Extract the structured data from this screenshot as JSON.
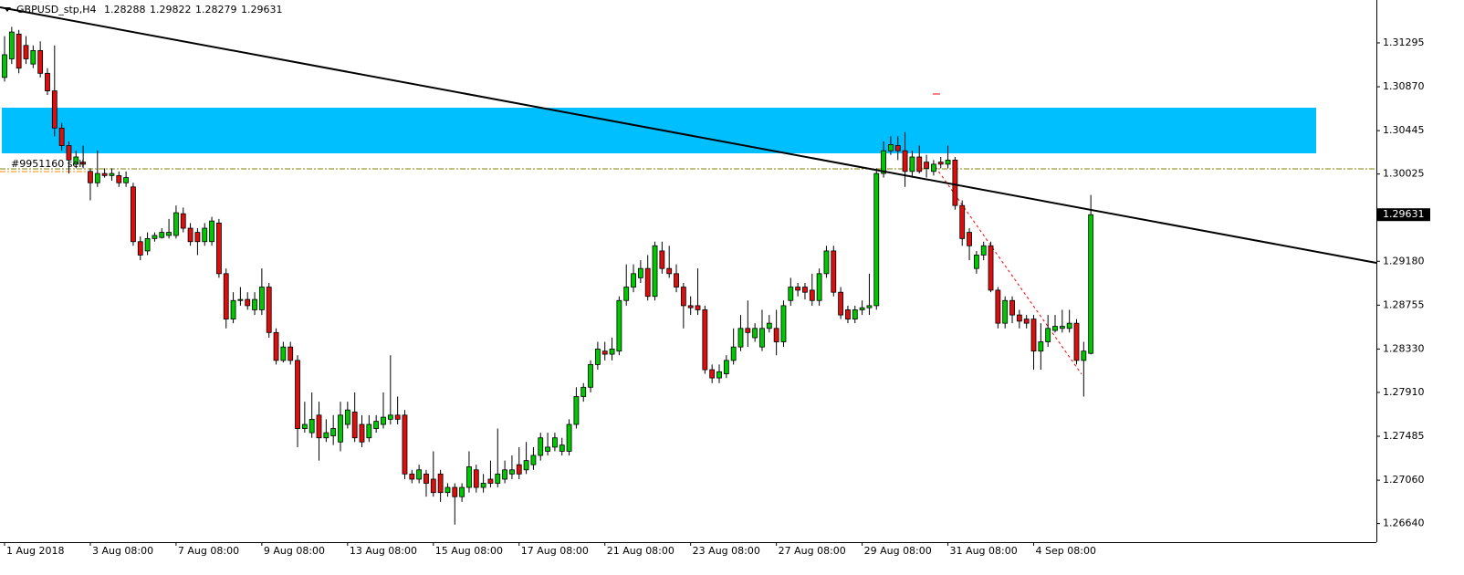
{
  "chart_data": {
    "type": "candlestick",
    "symbol": "GBPUSD_stp,H4",
    "order_label": "#9951160 sell",
    "up_color": "#00c800",
    "down_color": "#dc0f0f",
    "grid": false,
    "ylim": [
      1.2646,
      1.3171
    ],
    "yticks": [
      1.31295,
      {
        "value": 1.3087,
        "label": "1.30870"
      },
      1.30445,
      1.30025,
      {
        "value": 1.2918,
        "label": "1.29180"
      },
      1.28755,
      {
        "value": 1.2833,
        "label": "1.28330"
      },
      {
        "value": 1.2791,
        "label": "1.27910"
      },
      1.27485,
      {
        "value": 1.2706,
        "label": "1.27060"
      },
      {
        "value": 1.2664,
        "label": "1.26640"
      }
    ],
    "categories": [
      "1 Aug 2018",
      null,
      null,
      null,
      null,
      null,
      null,
      null,
      null,
      null,
      null,
      null,
      "3 Aug 08:00",
      null,
      null,
      null,
      null,
      null,
      null,
      null,
      null,
      null,
      null,
      null,
      "7 Aug 08:00",
      null,
      null,
      null,
      null,
      null,
      null,
      null,
      null,
      null,
      null,
      null,
      "9 Aug 08:00",
      null,
      null,
      null,
      null,
      null,
      null,
      null,
      null,
      null,
      null,
      null,
      "13 Aug 08:00",
      null,
      null,
      null,
      null,
      null,
      null,
      null,
      null,
      null,
      null,
      null,
      "15 Aug 08:00",
      null,
      null,
      null,
      null,
      null,
      null,
      null,
      null,
      null,
      null,
      null,
      "17 Aug 08:00",
      null,
      null,
      null,
      null,
      null,
      null,
      null,
      null,
      null,
      null,
      null,
      "21 Aug 08:00",
      null,
      null,
      null,
      null,
      null,
      null,
      null,
      null,
      null,
      null,
      null,
      "23 Aug 08:00",
      null,
      null,
      null,
      null,
      null,
      null,
      null,
      null,
      null,
      null,
      null,
      "27 Aug 08:00",
      null,
      null,
      null,
      null,
      null,
      null,
      null,
      null,
      null,
      null,
      null,
      "29 Aug 08:00",
      null,
      null,
      null,
      null,
      null,
      null,
      null,
      null,
      null,
      null,
      null,
      "31 Aug 08:00",
      null,
      null,
      null,
      null,
      null,
      null,
      null,
      null,
      null,
      null,
      null,
      "4 Sep 08:00",
      null,
      null,
      null,
      null,
      null,
      null,
      null,
      null
    ],
    "open": [
      1.3096,
      1.3114,
      1.3138,
      1.3127,
      1.3109,
      1.3122,
      1.31,
      1.3083,
      1.3047,
      1.303,
      1.3012,
      1.3014,
      1.3005,
      1.2994,
      1.3003,
      1.3001,
      1.3001,
      1.2994,
      1.299,
      1.2937,
      1.2928,
      1.294,
      1.2941,
      1.2943,
      1.2943,
      1.2964,
      1.295,
      1.2946,
      1.2937,
      1.2937,
      1.2955,
      1.2906,
      1.2862,
      1.288,
      1.2881,
      1.2871,
      1.2871,
      1.2893,
      1.2849,
      1.2822,
      1.2835,
      1.2822,
      1.2756,
      1.2752,
      1.2769,
      1.2747,
      1.2749,
      1.2743,
      1.276,
      1.2772,
      1.276,
      1.2747,
      1.2756,
      1.276,
      1.2765,
      1.2769,
      1.2769,
      1.2712,
      1.2707,
      1.2712,
      1.2707,
      1.2712,
      1.2694,
      1.2699,
      1.269,
      1.2699,
      1.2716,
      1.2699,
      1.2707,
      1.2703,
      1.2707,
      1.2712,
      1.2721,
      1.2716,
      1.2721,
      1.273,
      1.2734,
      1.2738,
      1.2734,
      1.2734,
      1.276,
      1.2787,
      1.2796,
      1.2818,
      1.2831,
      1.2828,
      1.2831,
      1.288,
      1.2893,
      1.2902,
      1.2911,
      1.2884,
      1.2928,
      1.2911,
      1.2906,
      1.2893,
      1.2875,
      1.2875,
      1.2871,
      1.2813,
      1.2805,
      1.2809,
      1.2822,
      1.2835,
      1.2853,
      1.2844,
      1.2835,
      1.2853,
      1.2853,
      1.284,
      1.288,
      1.2893,
      1.2893,
      1.289,
      1.288,
      1.2906,
      1.2928,
      1.2888,
      1.2871,
      1.2862,
      1.2871,
      1.2873,
      1.2875,
      1.3003,
      1.3025,
      1.303,
      1.3025,
      1.3005,
      1.3019,
      1.3014,
      1.3005,
      1.3014,
      1.3012,
      1.3016,
      1.2972,
      1.2946,
      1.2911,
      1.2924,
      1.2933,
      1.289,
      1.2858,
      1.288,
      1.2866,
      1.2862,
      1.2862,
      1.2831,
      1.284,
      1.2851,
      1.2853,
      1.2853,
      1.2858,
      1.2822,
      1.28288
    ],
    "high": [
      1.3136,
      1.3145,
      1.3142,
      1.3136,
      1.3127,
      1.3131,
      1.3105,
      1.3127,
      1.3052,
      1.3034,
      1.3025,
      1.303,
      1.3008,
      1.3025,
      1.3008,
      1.3008,
      1.3005,
      1.3005,
      1.2994,
      1.2942,
      1.2946,
      1.2946,
      1.295,
      1.2959,
      1.2972,
      1.297,
      1.2955,
      1.295,
      1.2955,
      1.2961,
      1.2959,
      1.2911,
      1.2888,
      1.2893,
      1.2888,
      1.2888,
      1.2911,
      1.2897,
      1.2853,
      1.284,
      1.284,
      1.2827,
      1.2782,
      1.2791,
      1.2782,
      1.2765,
      1.2769,
      1.2782,
      1.2782,
      1.2791,
      1.2769,
      1.2769,
      1.2769,
      1.2791,
      1.2827,
      1.2787,
      1.2774,
      1.2716,
      1.2721,
      1.2716,
      1.2734,
      1.2716,
      1.2703,
      1.2703,
      1.2703,
      1.2734,
      1.2721,
      1.2712,
      1.2725,
      1.2756,
      1.2725,
      1.273,
      1.2738,
      1.2743,
      1.2738,
      1.2752,
      1.2752,
      1.2752,
      1.2747,
      1.2765,
      1.2796,
      1.28,
      1.2822,
      1.284,
      1.284,
      1.2844,
      1.2884,
      1.2915,
      1.2915,
      1.2919,
      1.2924,
      1.2937,
      1.2937,
      1.2933,
      1.2915,
      1.2897,
      1.2884,
      1.2911,
      1.2875,
      1.2818,
      1.2818,
      1.2827,
      1.2853,
      1.2866,
      1.288,
      1.2858,
      1.2871,
      1.2866,
      1.2871,
      1.288,
      1.2902,
      1.2897,
      1.2897,
      1.2906,
      1.2911,
      1.2933,
      1.2933,
      1.2893,
      1.2875,
      1.2875,
      1.288,
      1.2906,
      1.3008,
      1.3034,
      1.3039,
      1.3039,
      1.3043,
      1.3025,
      1.303,
      1.3021,
      1.3016,
      1.3019,
      1.303,
      1.3019,
      1.2977,
      1.295,
      1.2928,
      1.2937,
      1.2937,
      1.2893,
      1.2884,
      1.2884,
      1.2871,
      1.2866,
      1.2866,
      1.2858,
      1.2866,
      1.2866,
      1.2871,
      1.2871,
      1.2862,
      1.284,
      1.29822
    ],
    "low": [
      1.3092,
      1.3109,
      1.31,
      1.3109,
      1.3105,
      1.3096,
      1.3079,
      1.3039,
      1.3025,
      1.3003,
      1.3008,
      1.3008,
      1.2977,
      1.299,
      1.2999,
      1.2996,
      1.299,
      1.299,
      1.2933,
      1.2919,
      1.2924,
      1.2937,
      1.294,
      1.294,
      1.294,
      1.2946,
      1.2933,
      1.2924,
      1.2933,
      1.2933,
      1.2902,
      1.2853,
      1.2858,
      1.2875,
      1.2871,
      1.2866,
      1.2866,
      1.2844,
      1.2818,
      1.282,
      1.2818,
      1.2738,
      1.2752,
      1.2747,
      1.2725,
      1.2743,
      1.274,
      1.2734,
      1.2756,
      1.2743,
      1.2738,
      1.2743,
      1.2752,
      1.2756,
      1.276,
      1.276,
      1.2707,
      1.2703,
      1.2703,
      1.269,
      1.269,
      1.2685,
      1.269,
      1.2663,
      1.2685,
      1.2694,
      1.2694,
      1.2694,
      1.2699,
      1.2699,
      1.2703,
      1.2707,
      1.2707,
      1.2712,
      1.2716,
      1.2725,
      1.273,
      1.2734,
      1.273,
      1.273,
      1.2756,
      1.2782,
      1.2791,
      1.2813,
      1.2822,
      1.2822,
      1.2827,
      1.2875,
      1.2888,
      1.2897,
      1.288,
      1.288,
      1.2906,
      1.2902,
      1.2888,
      1.2853,
      1.2866,
      1.2866,
      1.2809,
      1.28,
      1.28,
      1.2805,
      1.2818,
      1.2831,
      1.2835,
      1.284,
      1.2831,
      1.2849,
      1.2827,
      1.2835,
      1.2875,
      1.2884,
      1.2881,
      1.2875,
      1.2875,
      1.2902,
      1.2884,
      1.2862,
      1.2858,
      1.2858,
      1.2866,
      1.2866,
      1.2871,
      1.2999,
      1.3021,
      1.3016,
      1.299,
      1.2999,
      1.3003,
      1.2999,
      1.3001,
      1.3008,
      1.3008,
      1.2968,
      1.2933,
      1.2919,
      1.2906,
      1.2919,
      1.2888,
      1.2853,
      1.2853,
      1.2858,
      1.2853,
      1.2853,
      1.2813,
      1.2813,
      1.2835,
      1.2849,
      1.2849,
      1.2849,
      1.2818,
      1.2787,
      1.28279
    ],
    "close": [
      1.3118,
      1.314,
      1.3105,
      1.3114,
      1.3122,
      1.31,
      1.3083,
      1.3047,
      1.303,
      1.3016,
      1.3019,
      1.3012,
      1.2994,
      1.3003,
      1.3001,
      1.3003,
      1.2994,
      1.2999,
      1.2937,
      1.2924,
      1.294,
      1.2943,
      1.2946,
      1.2946,
      1.2965,
      1.295,
      1.2937,
      1.2937,
      1.295,
      1.2957,
      1.2906,
      1.2862,
      1.288,
      1.2881,
      1.2875,
      1.2881,
      1.2893,
      1.2849,
      1.2822,
      1.2835,
      1.2822,
      1.2756,
      1.276,
      1.2765,
      1.2747,
      1.2752,
      1.2756,
      1.2769,
      1.2774,
      1.2747,
      1.2743,
      1.276,
      1.2763,
      1.2767,
      1.2769,
      1.2765,
      1.2712,
      1.2707,
      1.2716,
      1.2703,
      1.2694,
      1.2694,
      1.2699,
      1.269,
      1.2699,
      1.2719,
      1.2699,
      1.2703,
      1.2703,
      1.2712,
      1.2716,
      1.2716,
      1.2712,
      1.2725,
      1.273,
      1.2747,
      1.2738,
      1.2747,
      1.274,
      1.276,
      1.2787,
      1.2796,
      1.2818,
      1.2833,
      1.2828,
      1.2833,
      1.288,
      1.2893,
      1.2906,
      1.2911,
      1.2884,
      1.2933,
      1.2911,
      1.2906,
      1.2893,
      1.2875,
      1.2873,
      1.2871,
      1.2813,
      1.2805,
      1.2811,
      1.2822,
      1.2835,
      1.2853,
      1.2849,
      1.2853,
      1.2853,
      1.2858,
      1.284,
      1.2875,
      1.2893,
      1.289,
      1.2888,
      1.288,
      1.2906,
      1.2928,
      1.2888,
      1.2866,
      1.2862,
      1.2871,
      1.2873,
      1.2875,
      1.3003,
      1.3025,
      1.3031,
      1.3025,
      1.3005,
      1.3019,
      1.3005,
      1.3008,
      1.3012,
      1.3012,
      1.3016,
      1.2972,
      1.294,
      1.2933,
      1.2924,
      1.2933,
      1.289,
      1.2858,
      1.288,
      1.2866,
      1.286,
      1.2858,
      1.2831,
      1.284,
      1.2853,
      1.2855,
      1.2855,
      1.2858,
      1.2822,
      1.2831,
      1.29631
    ]
  }
}
